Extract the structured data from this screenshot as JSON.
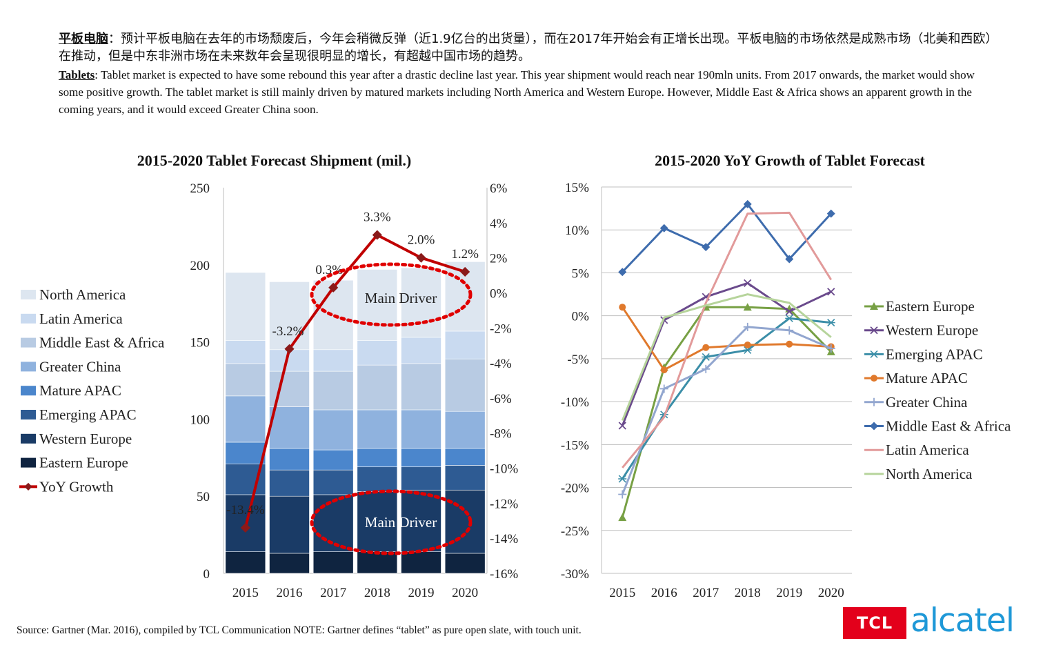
{
  "intro": {
    "cn_keyword": "平板电脑",
    "cn_text": "：预计平板电脑在去年的市场颓废后，今年会稍微反弹（近1.9亿台的出货量），而在2017年开始会有正增长出现。平板电脑的市场依然是成熟市场（北美和西欧）在推动，但是中东非洲市场在未来数年会呈现很明显的增长，有超越中国市场的趋势。",
    "en_keyword": "Tablets",
    "en_text": ": Tablet market is expected to have some rebound this year after a drastic decline last year. This year shipment would reach near 190mln units. From 2017 onwards, the market would show some positive growth. The tablet market is still mainly driven by matured markets including North America and Western Europe. However, Middle East & Africa shows an apparent growth in the coming years, and it would exceed Greater China soon."
  },
  "footer": {
    "source": "Source: Gartner (Mar. 2016), compiled by TCL Communication    NOTE: Gartner defines “tablet” as pure open slate, with touch unit.",
    "logo_tcl": "TCL",
    "logo_alcatel": "alcatel"
  },
  "chart_data": [
    {
      "type": "bar",
      "stacked": true,
      "title": "2015-2020 Tablet Forecast Shipment (mil.)",
      "categories": [
        "2015",
        "2016",
        "2017",
        "2018",
        "2019",
        "2020"
      ],
      "ylim": [
        0,
        250
      ],
      "yticks": [
        "0",
        "50",
        "100",
        "150",
        "200",
        "250"
      ],
      "y2lim": [
        -16,
        6
      ],
      "y2ticks": [
        "-16%",
        "-14%",
        "-12%",
        "-10%",
        "-8%",
        "-6%",
        "-4%",
        "-2%",
        "0%",
        "2%",
        "4%",
        "6%"
      ],
      "legend_position": "left",
      "series": [
        {
          "name": "Eastern Europe",
          "color": "#0f2440",
          "values": [
            14,
            13,
            14,
            14,
            14,
            13
          ]
        },
        {
          "name": "Western Europe",
          "color": "#1a3b66",
          "values": [
            37,
            37,
            37,
            39,
            40,
            41
          ]
        },
        {
          "name": "Emerging APAC",
          "color": "#2e5b93",
          "values": [
            20,
            17,
            16,
            16,
            15,
            16
          ]
        },
        {
          "name": "Mature APAC",
          "color": "#4b86cc",
          "values": [
            14,
            14,
            13,
            12,
            12,
            11
          ]
        },
        {
          "name": "Greater China",
          "color": "#8fb2de",
          "values": [
            30,
            27,
            26,
            25,
            25,
            24
          ]
        },
        {
          "name": "Middle East & Africa",
          "color": "#b8cbe3",
          "values": [
            21,
            23,
            25,
            29,
            30,
            34
          ]
        },
        {
          "name": "Latin America",
          "color": "#c9daf0",
          "values": [
            15,
            14,
            14,
            16,
            17,
            18
          ]
        },
        {
          "name": "North America",
          "color": "#dde6f0",
          "values": [
            44,
            44,
            45,
            46,
            45,
            45
          ]
        }
      ],
      "line_series": {
        "name": "YoY Growth",
        "color": "#c00000",
        "values": [
          -13.4,
          -3.2,
          0.3,
          3.3,
          2.0,
          1.2
        ],
        "labels": [
          "-13.4%",
          "-3.2%",
          "0.3%",
          "3.3%",
          "2.0%",
          "1.2%"
        ]
      },
      "annotations": [
        "Main Driver",
        "Main Driver"
      ]
    },
    {
      "type": "line",
      "title": "2015-2020 YoY Growth of  Tablet Forecast",
      "categories": [
        "2015",
        "2016",
        "2017",
        "2018",
        "2019",
        "2020"
      ],
      "ylim": [
        -30,
        15
      ],
      "yticks": [
        "-30%",
        "-25%",
        "-20%",
        "-15%",
        "-10%",
        "-5%",
        "0%",
        "5%",
        "10%",
        "15%"
      ],
      "legend_position": "right",
      "series": [
        {
          "name": "Eastern Europe",
          "color": "#77a044",
          "marker": "triangle",
          "values": [
            -23.5,
            -6.0,
            1.0,
            1.0,
            0.8,
            -4.2
          ]
        },
        {
          "name": "Western Europe",
          "color": "#6a4a8c",
          "marker": "x",
          "values": [
            -12.8,
            -0.5,
            2.2,
            3.8,
            0.5,
            2.8
          ]
        },
        {
          "name": "Emerging APAC",
          "color": "#3b8ea8",
          "marker": "star",
          "values": [
            -19.0,
            -11.5,
            -4.8,
            -4.0,
            -0.3,
            -0.8
          ]
        },
        {
          "name": "Mature APAC",
          "color": "#e0792c",
          "marker": "circle",
          "values": [
            1.0,
            -6.3,
            -3.7,
            -3.4,
            -3.3,
            -3.6
          ]
        },
        {
          "name": "Greater China",
          "color": "#92a6cf",
          "marker": "plus",
          "values": [
            -20.8,
            -8.5,
            -6.2,
            -1.3,
            -1.7,
            -3.8
          ]
        },
        {
          "name": "Middle East & Africa",
          "color": "#3e6cad",
          "marker": "diamond",
          "values": [
            5.1,
            10.2,
            8.0,
            13.0,
            6.6,
            11.9
          ]
        },
        {
          "name": "Latin America",
          "color": "#e29a9a",
          "marker": "none",
          "values": [
            -17.7,
            -11.8,
            1.5,
            11.9,
            12.0,
            4.2
          ]
        },
        {
          "name": "North America",
          "color": "#b6d49b",
          "marker": "none",
          "values": [
            -12.2,
            -0.2,
            1.2,
            2.5,
            1.5,
            -2.5
          ]
        }
      ]
    }
  ]
}
